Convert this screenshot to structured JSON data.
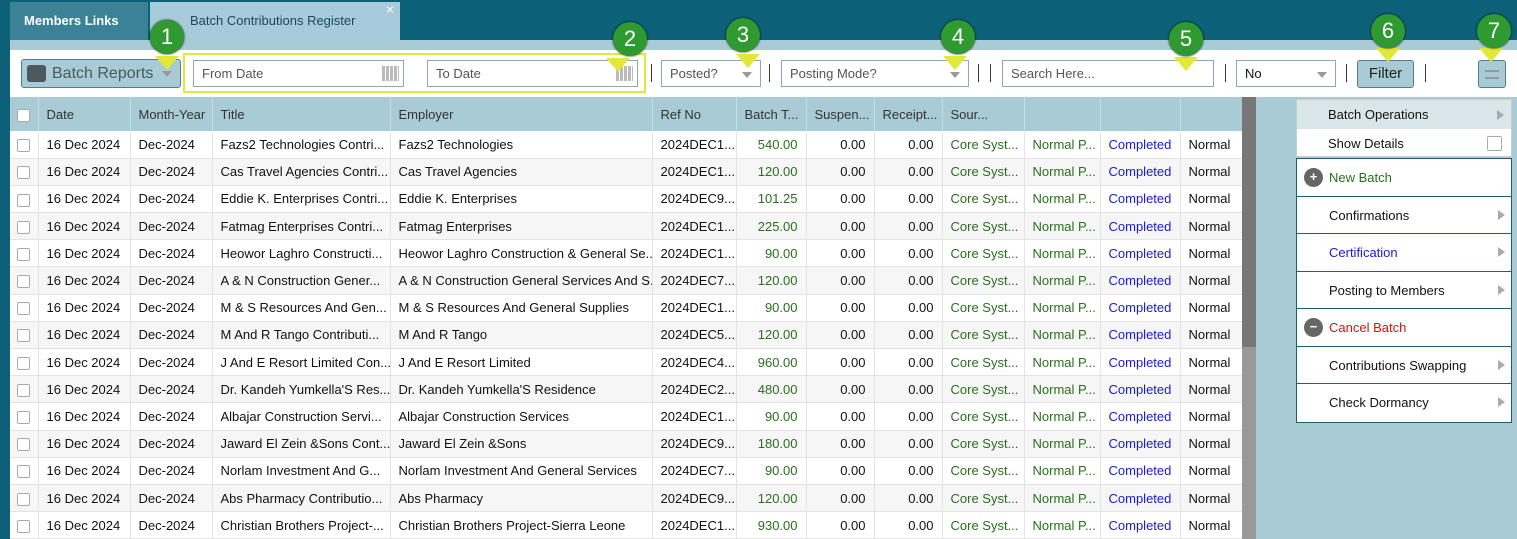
{
  "tabs": [
    {
      "label": "Members Links"
    },
    {
      "label": "Batch Contributions Register"
    }
  ],
  "toolbar": {
    "batch_reports": "Batch Reports",
    "from_date": "From Date",
    "to_date": "To Date",
    "posted": "Posted?",
    "posting_mode": "Posting Mode?",
    "search": "Search Here...",
    "no_select": "No",
    "filter": "Filter"
  },
  "badges": [
    "1",
    "2",
    "3",
    "4",
    "5",
    "6",
    "7"
  ],
  "columns": [
    "Date",
    "Month-Year",
    "Title",
    "Employer",
    "Ref No",
    "Batch T...",
    "Suspen...",
    "Receipt...",
    "Sour...",
    "",
    "",
    ""
  ],
  "rows": [
    [
      "16 Dec 2024",
      "Dec-2024",
      "Fazs2 Technologies Contri...",
      "Fazs2 Technologies",
      "2024DEC1...",
      "540.00",
      "0.00",
      "0.00",
      "Core Syst...",
      "Normal P...",
      "Completed",
      "Normal"
    ],
    [
      "16 Dec 2024",
      "Dec-2024",
      "Cas Travel Agencies Contri...",
      "Cas Travel Agencies",
      "2024DEC1...",
      "120.00",
      "0.00",
      "0.00",
      "Core Syst...",
      "Normal P...",
      "Completed",
      "Normal"
    ],
    [
      "16 Dec 2024",
      "Dec-2024",
      "Eddie K. Enterprises Contri...",
      "Eddie K. Enterprises",
      "2024DEC9...",
      "101.25",
      "0.00",
      "0.00",
      "Core Syst...",
      "Normal P...",
      "Completed",
      "Normal"
    ],
    [
      "16 Dec 2024",
      "Dec-2024",
      "Fatmag Enterprises Contri...",
      "Fatmag Enterprises",
      "2024DEC1...",
      "225.00",
      "0.00",
      "0.00",
      "Core Syst...",
      "Normal P...",
      "Completed",
      "Normal"
    ],
    [
      "16 Dec 2024",
      "Dec-2024",
      "Heowor Laghro Constructi...",
      "Heowor Laghro Construction & General Se...",
      "2024DEC1...",
      "90.00",
      "0.00",
      "0.00",
      "Core Syst...",
      "Normal P...",
      "Completed",
      "Normal"
    ],
    [
      "16 Dec 2024",
      "Dec-2024",
      "A & N Construction Gener...",
      "A & N Construction General Services And S...",
      "2024DEC7...",
      "120.00",
      "0.00",
      "0.00",
      "Core Syst...",
      "Normal P...",
      "Completed",
      "Normal"
    ],
    [
      "16 Dec 2024",
      "Dec-2024",
      "M & S Resources And Gen...",
      "M & S Resources And General Supplies",
      "2024DEC1...",
      "90.00",
      "0.00",
      "0.00",
      "Core Syst...",
      "Normal P...",
      "Completed",
      "Normal"
    ],
    [
      "16 Dec 2024",
      "Dec-2024",
      "M And R Tango Contributi...",
      "M And R Tango",
      "2024DEC5...",
      "120.00",
      "0.00",
      "0.00",
      "Core Syst...",
      "Normal P...",
      "Completed",
      "Normal"
    ],
    [
      "16 Dec 2024",
      "Dec-2024",
      "J And E Resort Limited Con...",
      "J And E Resort Limited",
      "2024DEC4...",
      "960.00",
      "0.00",
      "0.00",
      "Core Syst...",
      "Normal P...",
      "Completed",
      "Normal"
    ],
    [
      "16 Dec 2024",
      "Dec-2024",
      "Dr. Kandeh Yumkella'S Res...",
      "Dr. Kandeh Yumkella'S Residence",
      "2024DEC2...",
      "480.00",
      "0.00",
      "0.00",
      "Core Syst...",
      "Normal P...",
      "Completed",
      "Normal"
    ],
    [
      "16 Dec 2024",
      "Dec-2024",
      "Albajar Construction Servi...",
      "Albajar Construction Services",
      "2024DEC1...",
      "90.00",
      "0.00",
      "0.00",
      "Core Syst...",
      "Normal P...",
      "Completed",
      "Normal"
    ],
    [
      "16 Dec 2024",
      "Dec-2024",
      "Jaward El Zein &Sons Cont...",
      "Jaward El Zein &Sons",
      "2024DEC9...",
      "180.00",
      "0.00",
      "0.00",
      "Core Syst...",
      "Normal P...",
      "Completed",
      "Normal"
    ],
    [
      "16 Dec 2024",
      "Dec-2024",
      "Norlam Investment And G...",
      "Norlam Investment And General Services",
      "2024DEC7...",
      "90.00",
      "0.00",
      "0.00",
      "Core Syst...",
      "Normal P...",
      "Completed",
      "Normal"
    ],
    [
      "16 Dec 2024",
      "Dec-2024",
      "Abs Pharmacy Contributio...",
      "Abs Pharmacy",
      "2024DEC9...",
      "120.00",
      "0.00",
      "0.00",
      "Core Syst...",
      "Normal P...",
      "Completed",
      "Normal"
    ],
    [
      "16 Dec 2024",
      "Dec-2024",
      "Christian Brothers Project-...",
      "Christian Brothers Project-Sierra Leone",
      "2024DEC1...",
      "930.00",
      "0.00",
      "0.00",
      "Core Syst...",
      "Normal P...",
      "Completed",
      "Normal"
    ]
  ],
  "menu": [
    {
      "label": "New Batch",
      "color": "#2a6e1e",
      "icon": "plus-icon",
      "submenu": false
    },
    {
      "label": "Confirmations",
      "color": "#111111",
      "submenu": true
    },
    {
      "label": "Certification",
      "color": "#1a1ad8",
      "submenu": true
    },
    {
      "label": "Posting to Members",
      "color": "#111111",
      "submenu": true
    },
    {
      "label": "Cancel Batch",
      "color": "#e01010",
      "icon": "minus-icon",
      "submenu": false
    },
    {
      "label": "Contributions Swapping",
      "color": "#111111",
      "submenu": true
    },
    {
      "label": "Check Dormancy",
      "color": "#111111",
      "submenu": true
    }
  ],
  "side_menu": {
    "batch_operations": "Batch Operations",
    "show_details": "Show Details"
  }
}
